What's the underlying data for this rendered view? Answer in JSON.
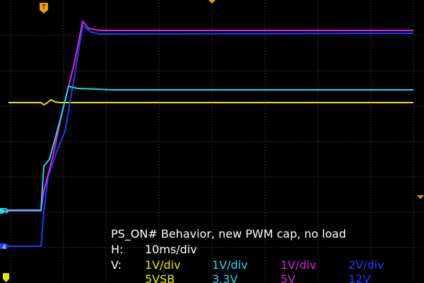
{
  "caption": {
    "title": "PS_ON# Behavior, new PWM cap, no load",
    "horizontal": {
      "label": "H:",
      "scale": "10ms/div"
    },
    "vertical": {
      "label": "V:",
      "channels": [
        {
          "scale": "1V/div",
          "name": "5VSB"
        },
        {
          "scale": "1V/div",
          "name": "3.3V"
        },
        {
          "scale": "1V/div",
          "name": "5V"
        },
        {
          "scale": "2V/div",
          "name": "12V"
        }
      ]
    }
  },
  "markers": {
    "trigger": "T",
    "channel_2": "2",
    "channel_4": "4"
  }
}
